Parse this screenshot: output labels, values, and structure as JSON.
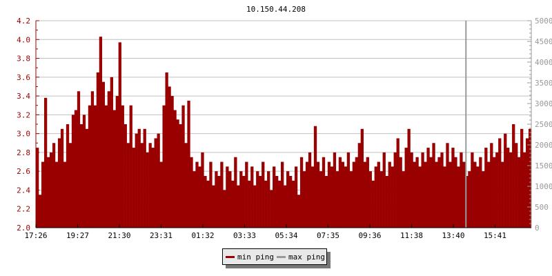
{
  "chart_data": {
    "type": "bar",
    "title": "10.150.44.208",
    "x_tick_labels": [
      "17:26",
      "19:27",
      "21:30",
      "23:31",
      "01:32",
      "03:33",
      "05:34",
      "07:35",
      "09:36",
      "11:38",
      "13:40",
      "15:41"
    ],
    "y_left": {
      "ylim": [
        2.0,
        4.2
      ],
      "ticks": [
        "2.0",
        "2.2",
        "2.4",
        "2.6",
        "2.8",
        "3.0",
        "3.2",
        "3.4",
        "3.6",
        "3.8",
        "4.0",
        "4.2"
      ]
    },
    "y_right": {
      "ylim": [
        0,
        5000
      ],
      "ticks": [
        "0",
        "500",
        "1000",
        "1500",
        "2000",
        "2500",
        "3000",
        "3500",
        "4000",
        "4500",
        "5000"
      ]
    },
    "grid": true,
    "legend_placement": "bottom",
    "series": [
      {
        "name": "min ping",
        "axis": "left",
        "color": "#990000",
        "values": [
          2.85,
          2.35,
          2.7,
          3.38,
          2.75,
          2.8,
          2.9,
          2.7,
          2.95,
          3.05,
          2.7,
          3.1,
          2.9,
          3.2,
          3.25,
          3.45,
          3.1,
          3.2,
          3.05,
          3.3,
          3.45,
          3.3,
          3.65,
          4.03,
          3.55,
          3.3,
          3.45,
          3.6,
          3.25,
          3.4,
          3.97,
          3.3,
          3.1,
          2.9,
          3.3,
          2.85,
          3.0,
          3.05,
          2.9,
          3.05,
          2.8,
          2.9,
          2.85,
          2.95,
          3.0,
          2.7,
          3.3,
          3.65,
          3.5,
          3.4,
          3.25,
          3.15,
          3.1,
          3.3,
          2.9,
          3.35,
          2.75,
          2.6,
          2.7,
          2.65,
          2.8,
          2.55,
          2.5,
          2.7,
          2.45,
          2.6,
          2.55,
          2.7,
          2.4,
          2.65,
          2.6,
          2.5,
          2.75,
          2.45,
          2.6,
          2.55,
          2.7,
          2.5,
          2.65,
          2.45,
          2.6,
          2.55,
          2.7,
          2.5,
          2.6,
          2.4,
          2.65,
          2.55,
          2.5,
          2.7,
          2.45,
          2.6,
          2.55,
          2.5,
          2.65,
          2.35,
          2.75,
          2.6,
          2.7,
          2.8,
          2.65,
          3.08,
          2.7,
          2.6,
          2.75,
          2.55,
          2.7,
          2.65,
          2.8,
          2.6,
          2.75,
          2.7,
          2.65,
          2.8,
          2.6,
          2.7,
          2.75,
          2.9,
          3.05,
          2.7,
          2.75,
          2.6,
          2.5,
          2.65,
          2.7,
          2.6,
          2.8,
          2.55,
          2.7,
          2.65,
          2.8,
          2.95,
          2.75,
          2.6,
          2.85,
          3.05,
          2.8,
          2.7,
          2.75,
          2.65,
          2.8,
          2.7,
          2.85,
          2.75,
          2.9,
          2.7,
          2.75,
          2.8,
          2.65,
          2.9,
          2.7,
          2.85,
          2.75,
          2.65,
          2.8,
          2.7,
          2.55,
          2.6,
          2.8,
          2.7,
          2.65,
          2.75,
          2.6,
          2.85,
          2.7,
          2.9,
          2.75,
          2.8,
          2.95,
          2.7,
          3.0,
          2.85,
          2.8,
          3.1,
          2.9,
          2.75,
          3.05,
          2.8,
          2.95,
          3.05
        ]
      },
      {
        "name": "max ping",
        "axis": "right",
        "color": "#999999",
        "spikes": [
          {
            "index": 156,
            "value": 5000
          }
        ]
      }
    ]
  }
}
